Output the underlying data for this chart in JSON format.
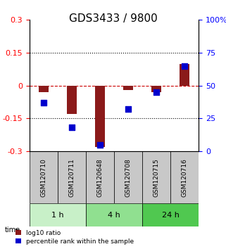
{
  "title": "GDS3433 / 9800",
  "samples": [
    "GSM120710",
    "GSM120711",
    "GSM120648",
    "GSM120708",
    "GSM120715",
    "GSM120716"
  ],
  "log10_ratio": [
    -0.03,
    -0.13,
    -0.28,
    -0.022,
    -0.03,
    0.1
  ],
  "percentile_rank": [
    37,
    18,
    5,
    32,
    45,
    65
  ],
  "time_groups": [
    {
      "label": "1 h",
      "start": 0,
      "end": 2,
      "color": "#c8f0c8"
    },
    {
      "label": "4 h",
      "start": 2,
      "end": 4,
      "color": "#90e090"
    },
    {
      "label": "24 h",
      "start": 4,
      "end": 6,
      "color": "#50c850"
    }
  ],
  "ylim_left": [
    -0.3,
    0.3
  ],
  "ylim_right": [
    0,
    100
  ],
  "yticks_left": [
    -0.3,
    -0.15,
    0,
    0.15,
    0.3
  ],
  "ytick_labels_left": [
    "-0.3",
    "-0.15",
    "0",
    "0.15",
    "0.3"
  ],
  "yticks_right": [
    0,
    25,
    50,
    75,
    100
  ],
  "ytick_labels_right": [
    "0",
    "25",
    "50",
    "75",
    "100%"
  ],
  "bar_color": "#8B1A1A",
  "dot_color": "#0000CD",
  "hline_color": "#CC0000",
  "grid_color": "#000000",
  "sample_box_color": "#c8c8c8",
  "title_fontsize": 11,
  "tick_fontsize": 8,
  "label_fontsize": 8
}
